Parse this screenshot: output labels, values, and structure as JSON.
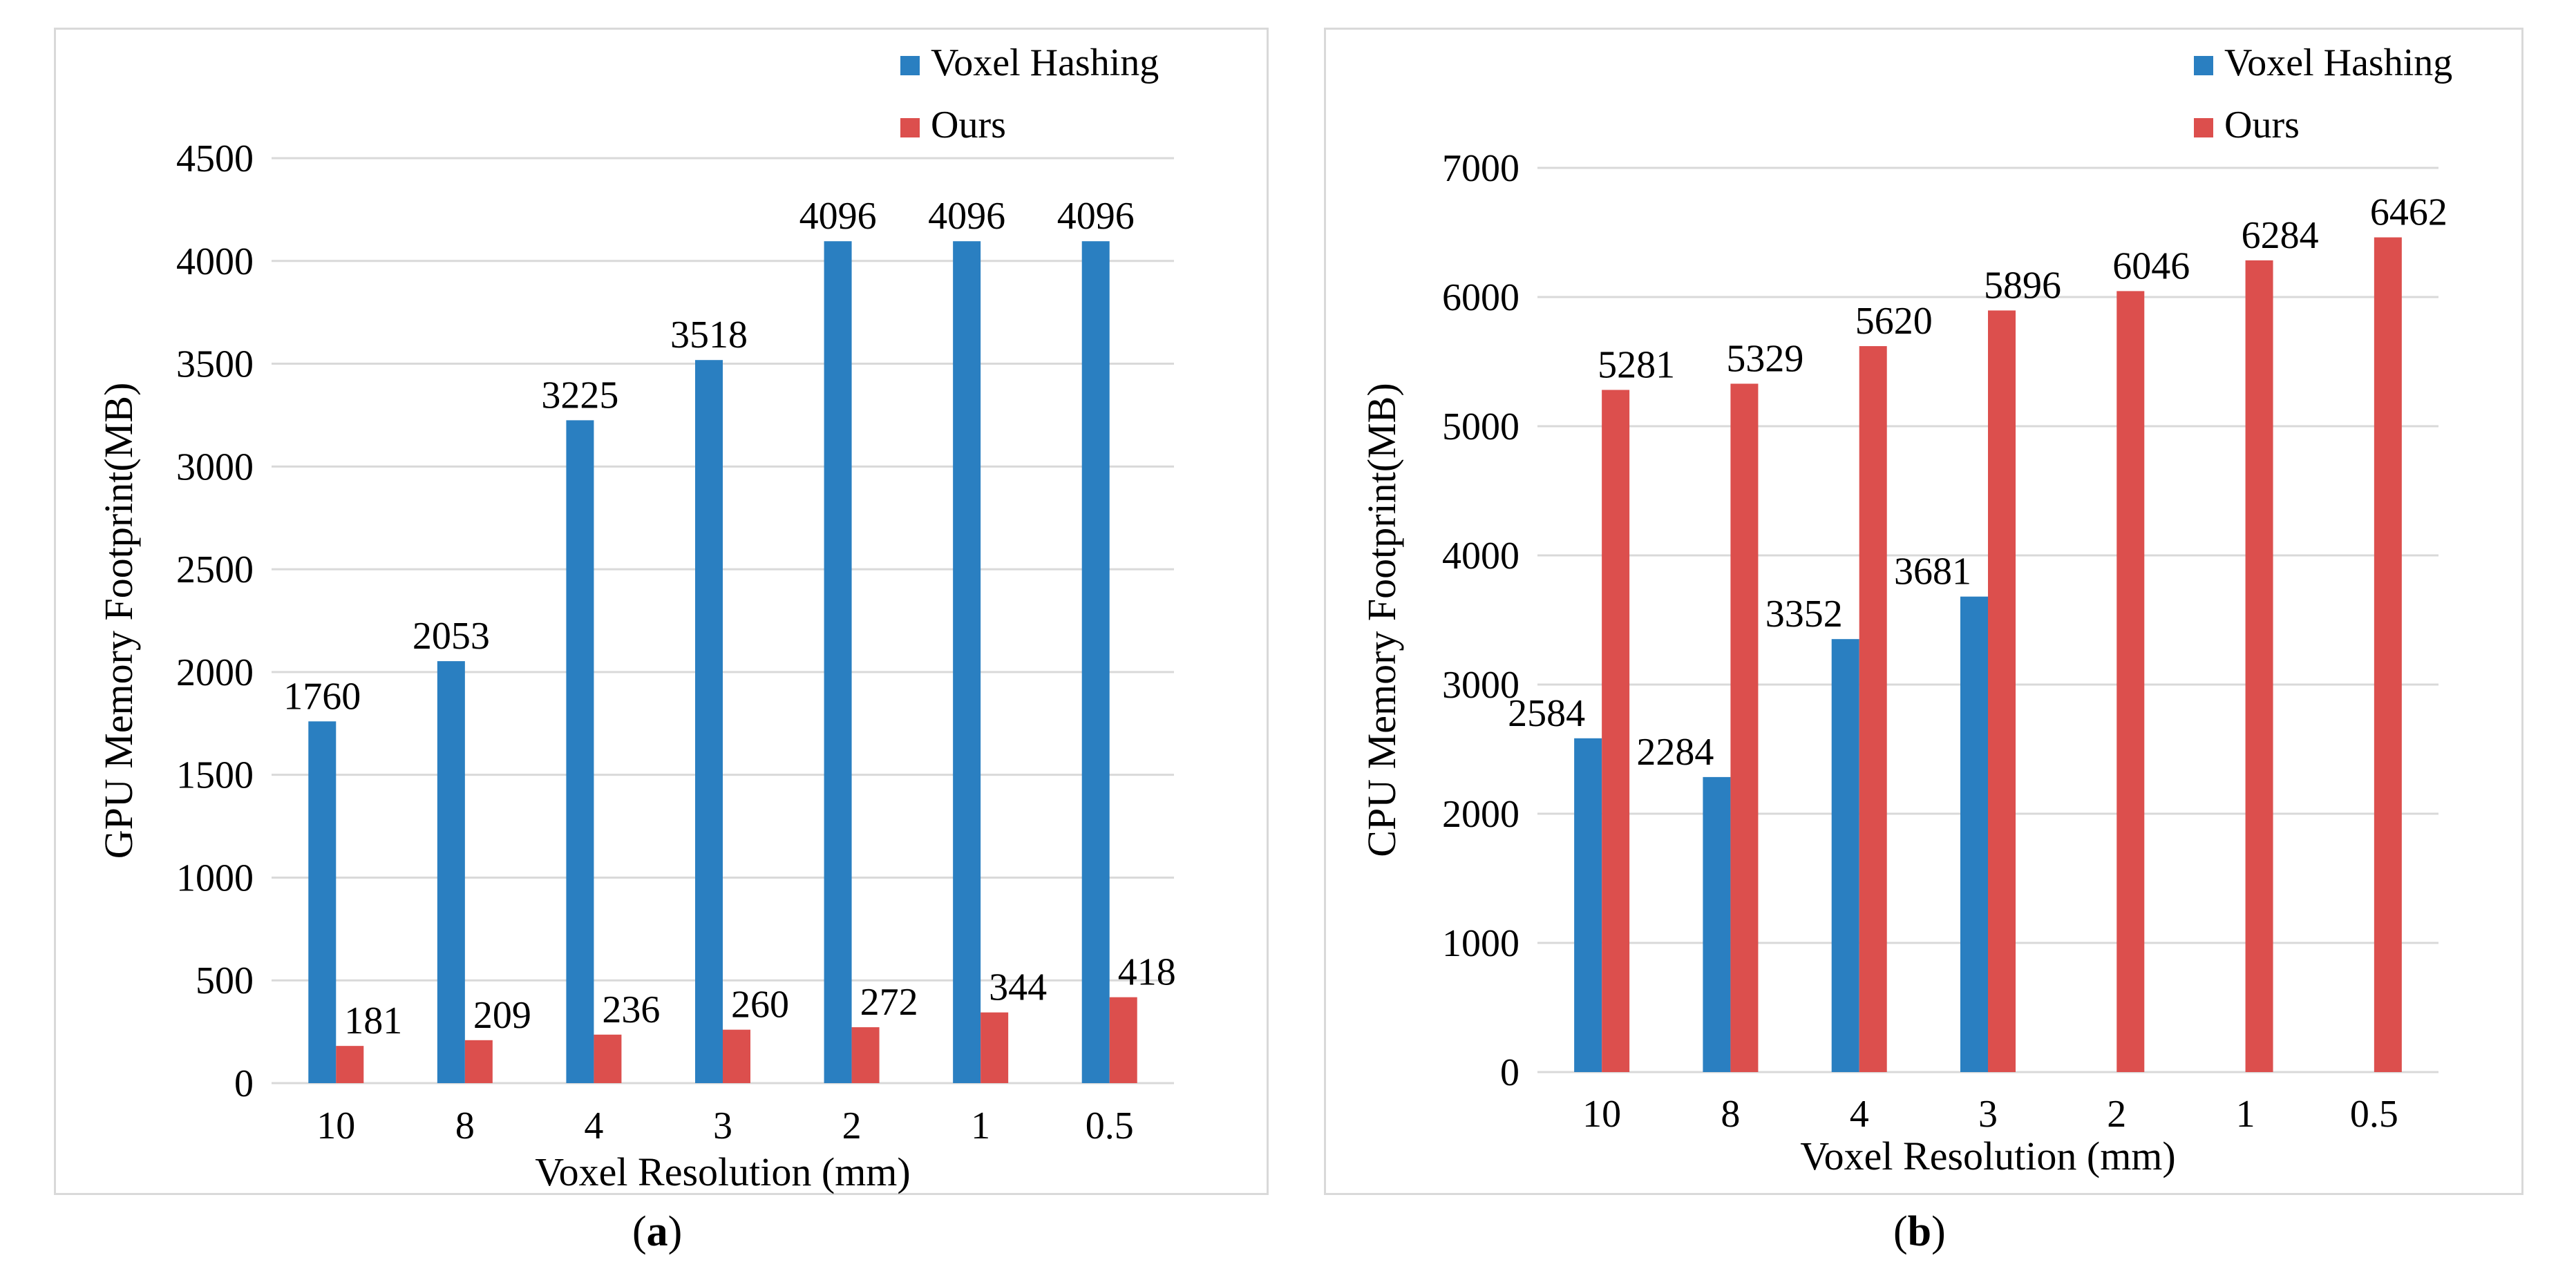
{
  "chart_data": [
    {
      "type": "bar",
      "panel": "a",
      "title": "",
      "xlabel": "Voxel Resolution (mm)",
      "ylabel": "GPU Memory Footprint(MB)",
      "ylim": [
        0,
        4500
      ],
      "ytick_step": 500,
      "yticks": [
        "0",
        "500",
        "1000",
        "1500",
        "2000",
        "2500",
        "3000",
        "3500",
        "4000",
        "4500"
      ],
      "categories": [
        "10",
        "8",
        "4",
        "3",
        "2",
        "1",
        "0.5"
      ],
      "legend_position": "top-right",
      "series": [
        {
          "name": "Voxel Hashing",
          "color": "#2a7fc1",
          "values": [
            1760,
            2053,
            3225,
            3518,
            4096,
            4096,
            4096
          ]
        },
        {
          "name": "Ours",
          "color": "#dc4f4d",
          "values": [
            181,
            209,
            236,
            260,
            272,
            344,
            418
          ]
        }
      ],
      "caption_letter": "a"
    },
    {
      "type": "bar",
      "panel": "b",
      "title": "",
      "xlabel": "Voxel Resolution (mm)",
      "ylabel": "CPU Memory Footprint(MB)",
      "ylim": [
        0,
        7000
      ],
      "ytick_step": 1000,
      "yticks": [
        "0",
        "1000",
        "2000",
        "3000",
        "4000",
        "5000",
        "6000",
        "7000"
      ],
      "categories": [
        "10",
        "8",
        "4",
        "3",
        "2",
        "1",
        "0.5"
      ],
      "legend_position": "top-right",
      "series": [
        {
          "name": "Voxel Hashing",
          "color": "#2a7fc1",
          "values": [
            2584,
            2284,
            3352,
            3681,
            null,
            null,
            null
          ]
        },
        {
          "name": "Ours",
          "color": "#dc4f4d",
          "values": [
            5281,
            5329,
            5620,
            5896,
            6046,
            6284,
            6462
          ]
        }
      ],
      "caption_letter": "b"
    }
  ],
  "captions": {
    "a": {
      "open": "(",
      "letter": "a",
      "close": ")"
    },
    "b": {
      "open": "(",
      "letter": "b",
      "close": ")"
    }
  }
}
